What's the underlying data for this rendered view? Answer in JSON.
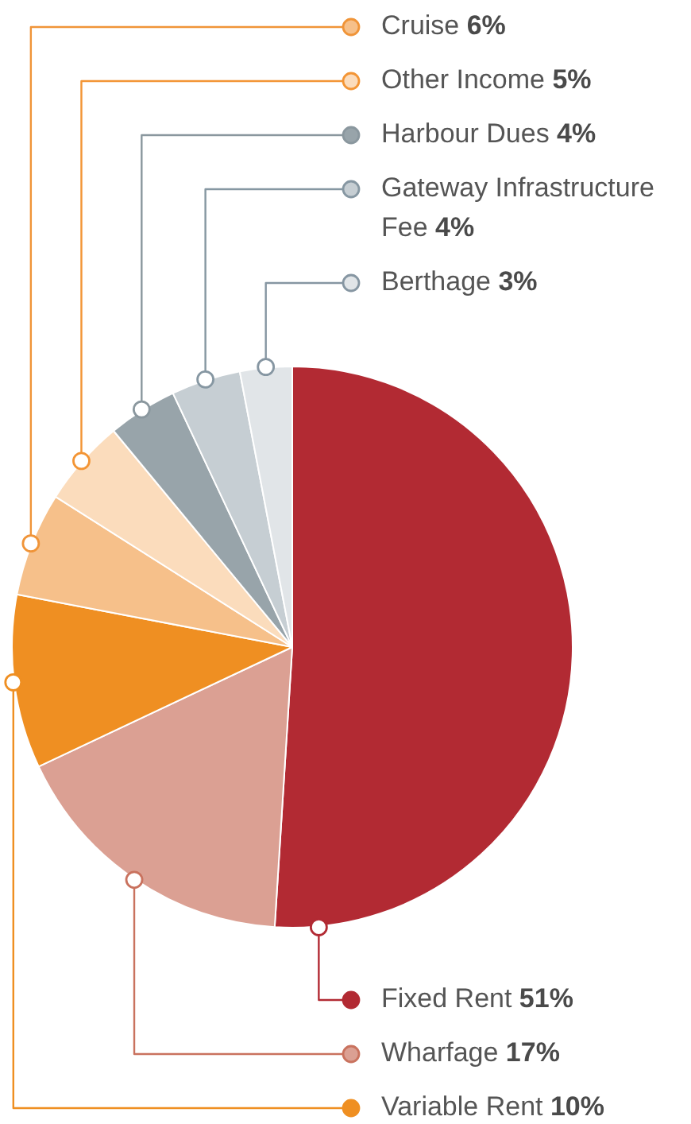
{
  "chart_data": {
    "type": "pie",
    "categories": [
      "Fixed Rent",
      "Wharfage",
      "Variable Rent",
      "Cruise",
      "Other Income",
      "Harbour Dues",
      "Gateway Infrastructure Fee",
      "Berthage"
    ],
    "values": [
      51,
      17,
      10,
      6,
      5,
      4,
      4,
      3
    ],
    "value_labels": [
      "51%",
      "17%",
      "10%",
      "6%",
      "5%",
      "4%",
      "4%",
      "3%"
    ],
    "colors": [
      "#b22a33",
      "#dba093",
      "#ef8f22",
      "#f6c08a",
      "#fbdcbc",
      "#98a4aa",
      "#c6ced3",
      "#e1e5e8"
    ],
    "legend": "right"
  }
}
